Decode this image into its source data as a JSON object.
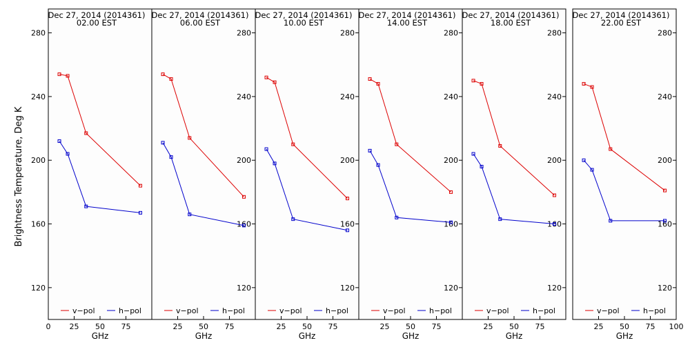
{
  "figure": {
    "ylabel": "Brightness Temperature, Deg K",
    "xlabel": "GHz"
  },
  "colors": {
    "v_pol": "#dd0000",
    "h_pol": "#0000cc",
    "panel_bg": "#fdfdfd",
    "axis": "#000000"
  },
  "chart_data": [
    {
      "type": "line",
      "title": "Dec 27, 2014 (2014361)",
      "subtitle": "02.00 EST",
      "xlabel": "GHz",
      "ylabel": "Brightness Temperature, Deg K",
      "xlim": [
        0,
        100
      ],
      "ylim": [
        100,
        295
      ],
      "xticks": [
        0,
        25,
        50,
        75
      ],
      "xtick_labels": [
        "0",
        "25",
        "50",
        "75"
      ],
      "yticks": [
        120,
        160,
        200,
        240,
        280
      ],
      "ytick_labels": [
        "120",
        "160",
        "200",
        "240",
        "280"
      ],
      "ytick_side": "left",
      "legend": "bottom",
      "x": [
        10.7,
        18.7,
        36.5,
        89.0
      ],
      "series": [
        {
          "name": "v−pol",
          "color": "#dd0000",
          "values": [
            254,
            253,
            217,
            184
          ]
        },
        {
          "name": "h−pol",
          "color": "#0000cc",
          "values": [
            212,
            204,
            171,
            167
          ]
        }
      ]
    },
    {
      "type": "line",
      "title": "Dec 27, 2014 (2014361)",
      "subtitle": "06.00 EST",
      "xlabel": "GHz",
      "xlim": [
        0,
        100
      ],
      "ylim": [
        100,
        295
      ],
      "xticks": [
        25,
        50,
        75
      ],
      "xtick_labels": [
        "25",
        "50",
        "75"
      ],
      "yticks": [
        120,
        160,
        200,
        240,
        280
      ],
      "ytick_labels": [
        "120",
        "160",
        "200",
        "240",
        "280"
      ],
      "ytick_side": "right",
      "legend": "bottom",
      "x": [
        10.7,
        18.7,
        36.5,
        89.0
      ],
      "series": [
        {
          "name": "v−pol",
          "color": "#dd0000",
          "values": [
            254,
            251,
            214,
            177
          ]
        },
        {
          "name": "h−pol",
          "color": "#0000cc",
          "values": [
            211,
            202,
            166,
            159
          ]
        }
      ]
    },
    {
      "type": "line",
      "title": "Dec 27, 2014 (2014361)",
      "subtitle": "10.00 EST",
      "xlabel": "GHz",
      "xlim": [
        0,
        100
      ],
      "ylim": [
        100,
        295
      ],
      "xticks": [
        25,
        50,
        75
      ],
      "xtick_labels": [
        "25",
        "50",
        "75"
      ],
      "yticks": [
        120,
        160,
        200,
        240,
        280
      ],
      "ytick_labels": [
        "120",
        "160",
        "200",
        "240",
        "280"
      ],
      "ytick_side": "right",
      "legend": "bottom",
      "x": [
        10.7,
        18.7,
        36.5,
        89.0
      ],
      "series": [
        {
          "name": "v−pol",
          "color": "#dd0000",
          "values": [
            252,
            249,
            210,
            176
          ]
        },
        {
          "name": "h−pol",
          "color": "#0000cc",
          "values": [
            207,
            198,
            163,
            156
          ]
        }
      ]
    },
    {
      "type": "line",
      "title": "Dec 27, 2014 (2014361)",
      "subtitle": "14.00 EST",
      "xlabel": "GHz",
      "xlim": [
        0,
        100
      ],
      "ylim": [
        100,
        295
      ],
      "xticks": [
        25,
        50,
        75
      ],
      "xtick_labels": [
        "25",
        "50",
        "75"
      ],
      "yticks": [
        120,
        160,
        200,
        240,
        280
      ],
      "ytick_labels": [
        "120",
        "160",
        "200",
        "240",
        "280"
      ],
      "ytick_side": "right",
      "legend": "bottom",
      "x": [
        10.7,
        18.7,
        36.5,
        89.0
      ],
      "series": [
        {
          "name": "v−pol",
          "color": "#dd0000",
          "values": [
            251,
            248,
            210,
            180
          ]
        },
        {
          "name": "h−pol",
          "color": "#0000cc",
          "values": [
            206,
            197,
            164,
            161
          ]
        }
      ]
    },
    {
      "type": "line",
      "title": "Dec 27, 2014 (2014361)",
      "subtitle": "18.00 EST",
      "xlabel": "GHz",
      "xlim": [
        0,
        100
      ],
      "ylim": [
        100,
        295
      ],
      "xticks": [
        25,
        50,
        75
      ],
      "xtick_labels": [
        "25",
        "50",
        "75"
      ],
      "yticks": [
        120,
        160,
        200,
        240,
        280
      ],
      "ytick_labels": [
        "120",
        "160",
        "200",
        "240",
        "280"
      ],
      "ytick_side": "right",
      "legend": "bottom",
      "x": [
        10.7,
        18.7,
        36.5,
        89.0
      ],
      "series": [
        {
          "name": "v−pol",
          "color": "#dd0000",
          "values": [
            250,
            248,
            209,
            178
          ]
        },
        {
          "name": "h−pol",
          "color": "#0000cc",
          "values": [
            204,
            196,
            163,
            160
          ]
        }
      ]
    },
    {
      "type": "line",
      "title": "Dec 27, 2014 (2014361)",
      "subtitle": "22.00 EST",
      "xlabel": "GHz",
      "xlim": [
        0,
        100
      ],
      "ylim": [
        100,
        295
      ],
      "xticks": [
        25,
        50,
        75,
        100
      ],
      "xtick_labels": [
        "25",
        "50",
        "75",
        "100"
      ],
      "yticks": [
        120,
        160,
        200,
        240,
        280
      ],
      "ytick_labels": [
        "120",
        "160",
        "200",
        "240",
        "280"
      ],
      "ytick_side": "right",
      "legend": "bottom",
      "x": [
        10.7,
        18.7,
        36.5,
        89.0
      ],
      "series": [
        {
          "name": "v−pol",
          "color": "#dd0000",
          "values": [
            248,
            246,
            207,
            181
          ]
        },
        {
          "name": "h−pol",
          "color": "#0000cc",
          "values": [
            200,
            194,
            162,
            162
          ]
        }
      ]
    }
  ]
}
